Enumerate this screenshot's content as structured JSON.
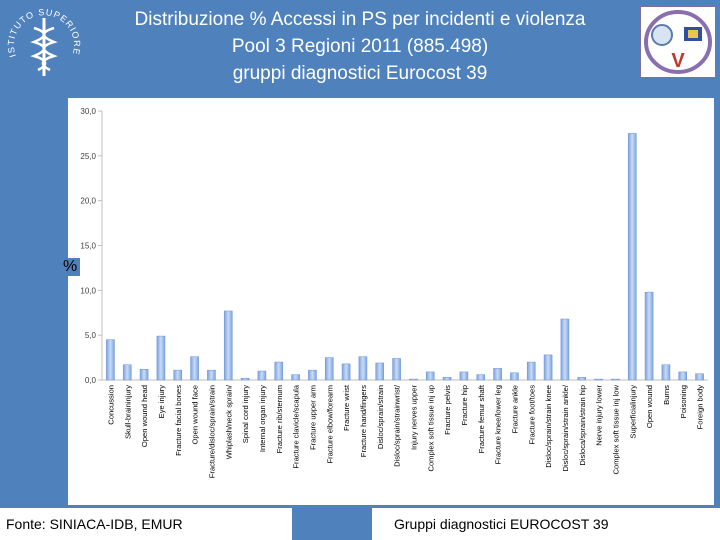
{
  "header": {
    "title_lines": [
      "Distribuzione % Accessi in PS per incidenti e violenza",
      "Pool 3 Regioni 2011 (885.498)",
      "gruppi diagnostici Eurocost 39"
    ]
  },
  "logos": {
    "left_text": "ISTITUTO SUPERIORE DI SANITÀ",
    "right_text": "V"
  },
  "colors": {
    "background": "#4f81bd",
    "bar_fill": "#7ba3e0",
    "bar_highlight": "#c9dbf7"
  },
  "footer": {
    "source": "Fonte: SINIACA-IDB, EMUR",
    "note": "Gruppi diagnostici EUROCOST 39"
  },
  "chart_data": {
    "type": "bar",
    "title": "",
    "xlabel": "",
    "ylabel": "%",
    "ylim": [
      0,
      30
    ],
    "yticks": [
      "0,0",
      "5,0",
      "10,0",
      "15,0",
      "20,0",
      "25,0",
      "30,0"
    ],
    "grid": false,
    "legend": "none",
    "categories": [
      "Concussion",
      "Skull-braininjury",
      "Open wound head",
      "Eye injury",
      "Fracture facial bones",
      "Open wound face",
      "Fracture/disloc/sprain/strain",
      "Whiplash/neck sprain/",
      "Spinal cord injury",
      "Internal organ injury",
      "Fracture rib/sternum",
      "Fracture clavicle/scapula",
      "Fracture upper arm",
      "Fracture elbow/forearm",
      "Fracture wrist",
      "Fracture hand/fingers",
      "Disloc/sprain/strain",
      "Disloc/sprain/strainwrist/",
      "Injury nerves upper",
      "Complex soft tissue inj up",
      "Fracture pelvis",
      "Fracture hip",
      "Fracture femur shaft",
      "Fracture knee/lower leg",
      "Fracture ankle",
      "Fracture foot/toes",
      "Disloc/sprain/strain knee",
      "Disloc/sprain/strain ankle/",
      "Disloca/sprain/strain hip",
      "Nerve injury lower",
      "Complex soft tissue inj low",
      "Superficialinjury",
      "Open wound",
      "Burns",
      "Poisoning",
      "Foreign body"
    ],
    "values": [
      4.5,
      1.7,
      1.2,
      4.9,
      1.1,
      2.6,
      1.1,
      7.7,
      0.2,
      1.0,
      2.0,
      0.6,
      1.1,
      2.5,
      1.8,
      2.6,
      1.9,
      2.4,
      0.1,
      0.9,
      0.3,
      0.9,
      0.6,
      1.3,
      0.8,
      2.0,
      2.8,
      6.8,
      0.3,
      0.1,
      0.1,
      27.5,
      9.8,
      1.7,
      0.9,
      0.7
    ]
  }
}
